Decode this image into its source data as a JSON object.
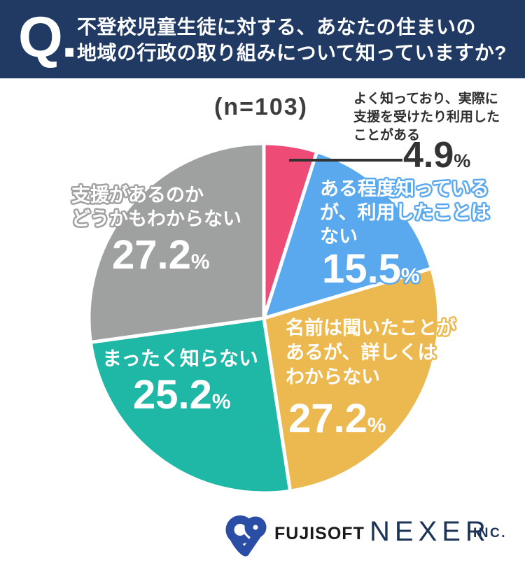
{
  "header": {
    "q_mark": "Q.",
    "title_line1": "不登校児童生徒に対する、あなたの住まいの",
    "title_line2": "地域の行政の取り組みについて知っていますか?"
  },
  "sample_size": "(n=103)",
  "chart_data": {
    "type": "pie",
    "title": "不登校児童生徒に対する、あなたの住まいの地域の行政の取り組みについて知っていますか?",
    "sample_size_n": 103,
    "start_angle_deg": 0,
    "direction": "clockwise",
    "legend_position": "on-slices",
    "slices": [
      {
        "label": "よく知っており、実際に支援を受けたり利用したことがある",
        "value": 4.9,
        "color": "#ef4b77"
      },
      {
        "label": "ある程度知っているが、利用したことはない",
        "value": 15.5,
        "color": "#5aa9ee"
      },
      {
        "label": "名前は聞いたことがあるが、詳しくはわからない",
        "value": 27.2,
        "color": "#ebb94f"
      },
      {
        "label": "まったく知らない",
        "value": 25.2,
        "color": "#1fb7a6"
      },
      {
        "label": "支援があるのかどうかもわからない",
        "value": 27.2,
        "color": "#9fa0a0"
      }
    ]
  },
  "callout": {
    "lines": [
      "よく知っており、実際に",
      "支援を受けたり利用した",
      "ことがある"
    ],
    "value": "4.9",
    "unit": "%"
  },
  "labels": {
    "blue": {
      "lines": [
        "ある程度知っている",
        "が、利用したことは",
        "ない"
      ],
      "value": "15.5",
      "unit": "%"
    },
    "yellow": {
      "lines": [
        "名前は聞いたことが",
        "あるが、詳しくは",
        "わからない"
      ],
      "value": "27.2",
      "unit": "%"
    },
    "teal": {
      "lines": [
        "まったく知らない"
      ],
      "value": "25.2",
      "unit": "%"
    },
    "gray": {
      "lines": [
        "支援があるのか",
        "どうかもわからない"
      ],
      "value": "27.2",
      "unit": "%"
    }
  },
  "footer": {
    "fujisoft": "FUJISOFT",
    "nexer": "NEXER",
    "inc": "INC."
  },
  "colors": {
    "header_bg": "#203a64",
    "pink": "#ef4b77",
    "blue": "#5aa9ee",
    "yellow": "#ebb94f",
    "teal": "#1fb7a6",
    "gray": "#9fa0a0",
    "dark_text": "#333333",
    "logo_blue": "#2a4da6",
    "logo_navy": "#1c3457"
  }
}
